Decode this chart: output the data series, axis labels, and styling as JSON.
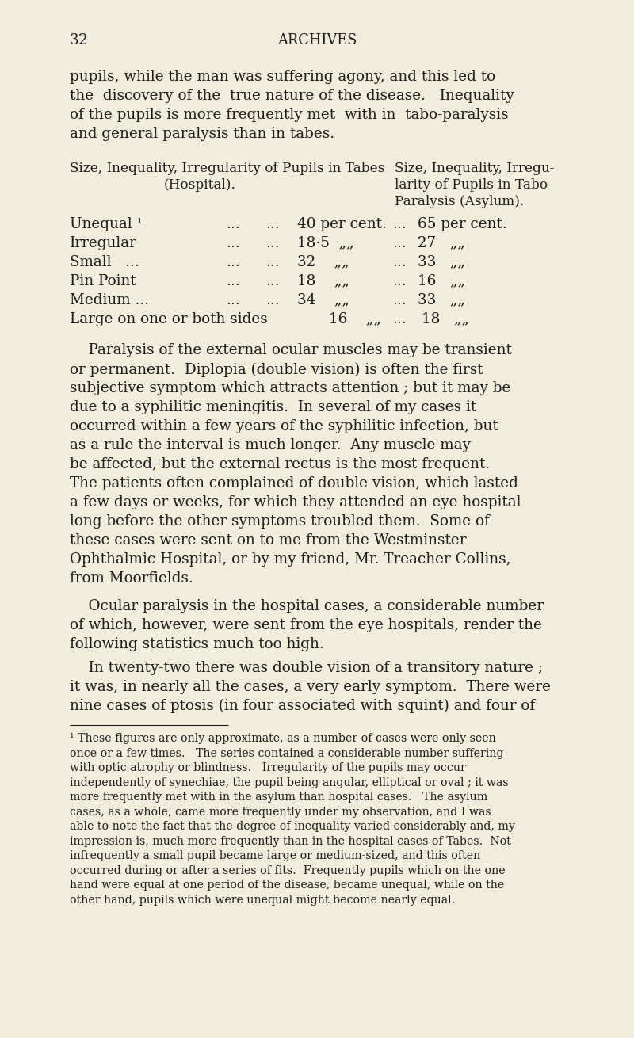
{
  "bg_color": "#f0eddb",
  "text_color": "#1c1c1c",
  "page_number": "32",
  "page_header": "ARCHIVES",
  "font_size_body": 13.2,
  "font_size_small": 10.2,
  "font_size_header": 12.8,
  "font_size_page_num": 13.5,
  "para1_lines": [
    "pupils, while the man was suffering agony, and this led to",
    "the  discovery of the  true nature of the disease.   Inequality",
    "of the pupils is more frequently met  with in  tabo-paralysis",
    "and general paralysis than in tabes."
  ],
  "col1_hdr": [
    "Size, Inequality, Irregularity of Pupils in Tabes",
    "(Hospital)."
  ],
  "col2_hdr": [
    "Size, Inequality, Irregu-",
    "larity of Pupils in Tabo-",
    "Paralysis (Asylum)."
  ],
  "table_labels": [
    "Unequal ¹",
    "Irregular",
    "Small   ...",
    "Pin Point",
    "Medium ...",
    "Large on one or both sides"
  ],
  "table_dots1": [
    "...",
    "...",
    "...",
    "...",
    "...",
    ""
  ],
  "table_dots2": [
    "...",
    "...",
    "...",
    "...",
    "...",
    ""
  ],
  "table_val1": [
    "40 per cent.",
    "18·5  „„",
    "32    „„",
    "18    „„",
    "34    „„",
    "16    „„"
  ],
  "table_dots3": [
    "...",
    "...",
    "...",
    "...",
    "...",
    "..."
  ],
  "table_val2": [
    "65 per cent.",
    "27   „„",
    "33   „„",
    "16   „„",
    "33   „„",
    "18   „„"
  ],
  "para2_lines": [
    "    Paralysis of the external ocular muscles may be transient",
    "or permanent.  Diplopia (double vision) is often the first",
    "subjective symptom which attracts attention ; but it may be",
    "due to a syphilitic meningitis.  In several of my cases it",
    "occurred within a few years of the syphilitic infection, but",
    "as a rule the interval is much longer.  Any muscle may",
    "be affected, but the external rectus is the most frequent.",
    "The patients often complained of double vision, which lasted",
    "a few days or weeks, for which they attended an eye hospital",
    "long before the other symptoms troubled them.  Some of",
    "these cases were sent on to me from the Westminster",
    "Ophthalmic Hospital, or by my friend, Mr. Treacher Collins,",
    "from Moorfields."
  ],
  "para3_lines": [
    "    Ocular paralysis in the hospital cases, a considerable number",
    "of which, however, were sent from the eye hospitals, render the",
    "following statistics much too high."
  ],
  "para4_lines": [
    "    In twenty-two there was double vision of a transitory nature ;",
    "it was, in nearly all the cases, a very early symptom.  There were",
    "nine cases of ptosis (in four associated with squint) and four of"
  ],
  "footnote_lines": [
    "¹ These figures are only approximate, as a number of cases were only seen",
    "once or a few times.   The series contained a considerable number suffering",
    "with optic atrophy or blindness.   Irregularity of the pupils may occur",
    "independently of synechiae, the pupil being angular, elliptical or oval ; it was",
    "more frequently met with in the asylum than hospital cases.   The asylum",
    "cases, as a whole, came more frequently under my observation, and I was",
    "able to note the fact that the degree of inequality varied considerably and, my",
    "impression is, much more frequently than in the hospital cases of Tabes.  Not",
    "infrequently a small pupil became large or medium-sized, and this often",
    "occurred during or after a series of fits.  Frequently pupils which on the one",
    "hand were equal at one period of the disease, became unequal, while on the",
    "other hand, pupils which were unequal might become nearly equal."
  ]
}
